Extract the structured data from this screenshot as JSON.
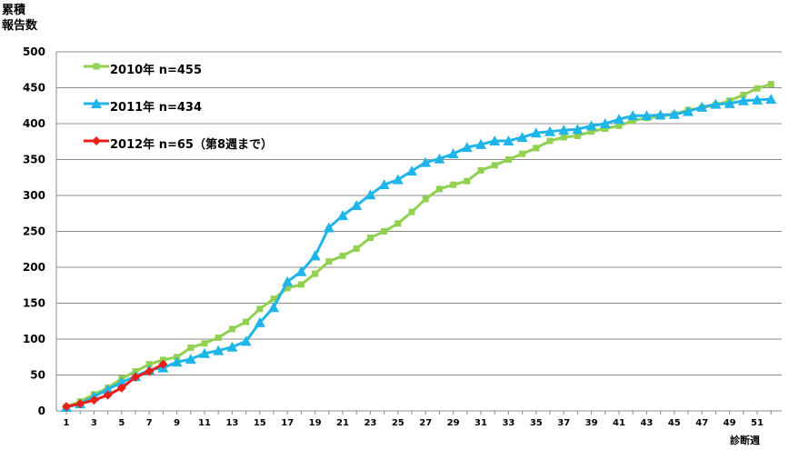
{
  "chart_data": {
    "type": "line",
    "ylabel_lines": [
      "累積",
      "報告数"
    ],
    "xlabel": "診断週",
    "ylim": [
      0,
      500
    ],
    "yticks": [
      0,
      50,
      100,
      150,
      200,
      250,
      300,
      350,
      400,
      450,
      500
    ],
    "xlim": [
      1,
      53
    ],
    "xticks": [
      1,
      3,
      5,
      7,
      9,
      11,
      13,
      15,
      17,
      19,
      21,
      23,
      25,
      27,
      29,
      31,
      33,
      35,
      37,
      39,
      41,
      43,
      45,
      47,
      49,
      51
    ],
    "grid": "horizontal",
    "legend_position": "top-left",
    "series": [
      {
        "name": "2010年 n=455",
        "color": "#92d050",
        "marker": "square",
        "x": [
          1,
          2,
          3,
          4,
          5,
          6,
          7,
          8,
          9,
          10,
          11,
          12,
          13,
          14,
          15,
          16,
          17,
          18,
          19,
          20,
          21,
          22,
          23,
          24,
          25,
          26,
          27,
          28,
          29,
          30,
          31,
          32,
          33,
          34,
          35,
          36,
          37,
          38,
          39,
          40,
          41,
          42,
          43,
          44,
          45,
          46,
          47,
          48,
          49,
          50,
          51,
          52
        ],
        "values": [
          6,
          13,
          23,
          32,
          45,
          55,
          65,
          71,
          75,
          88,
          94,
          102,
          114,
          124,
          142,
          156,
          171,
          176,
          191,
          208,
          216,
          226,
          241,
          250,
          261,
          277,
          295,
          309,
          315,
          320,
          335,
          342,
          350,
          358,
          366,
          376,
          381,
          383,
          389,
          393,
          397,
          404,
          408,
          410,
          413,
          419,
          422,
          426,
          432,
          440,
          449,
          455
        ]
      },
      {
        "name": "2011年 n=434",
        "color": "#1fb5e8",
        "marker": "triangle",
        "x": [
          1,
          2,
          3,
          4,
          5,
          6,
          7,
          8,
          9,
          10,
          11,
          12,
          13,
          14,
          15,
          16,
          17,
          18,
          19,
          20,
          21,
          22,
          23,
          24,
          25,
          26,
          27,
          28,
          29,
          30,
          31,
          32,
          33,
          34,
          35,
          36,
          37,
          38,
          39,
          40,
          41,
          42,
          43,
          44,
          45,
          46,
          47,
          48,
          49,
          50,
          51,
          52
        ],
        "values": [
          5,
          10,
          20,
          30,
          40,
          48,
          57,
          60,
          68,
          72,
          80,
          84,
          89,
          97,
          123,
          144,
          180,
          194,
          216,
          255,
          272,
          286,
          301,
          315,
          322,
          334,
          346,
          351,
          358,
          367,
          371,
          376,
          376,
          381,
          387,
          389,
          391,
          392,
          397,
          400,
          406,
          411,
          411,
          412,
          413,
          417,
          423,
          427,
          428,
          432,
          433,
          434
        ]
      },
      {
        "name": "2012年 n=65（第8週まで）",
        "color": "#e8201a",
        "marker": "diamond",
        "x": [
          1,
          2,
          3,
          4,
          5,
          6,
          7,
          8
        ],
        "values": [
          6,
          10,
          15,
          22,
          32,
          47,
          55,
          65
        ]
      }
    ]
  }
}
